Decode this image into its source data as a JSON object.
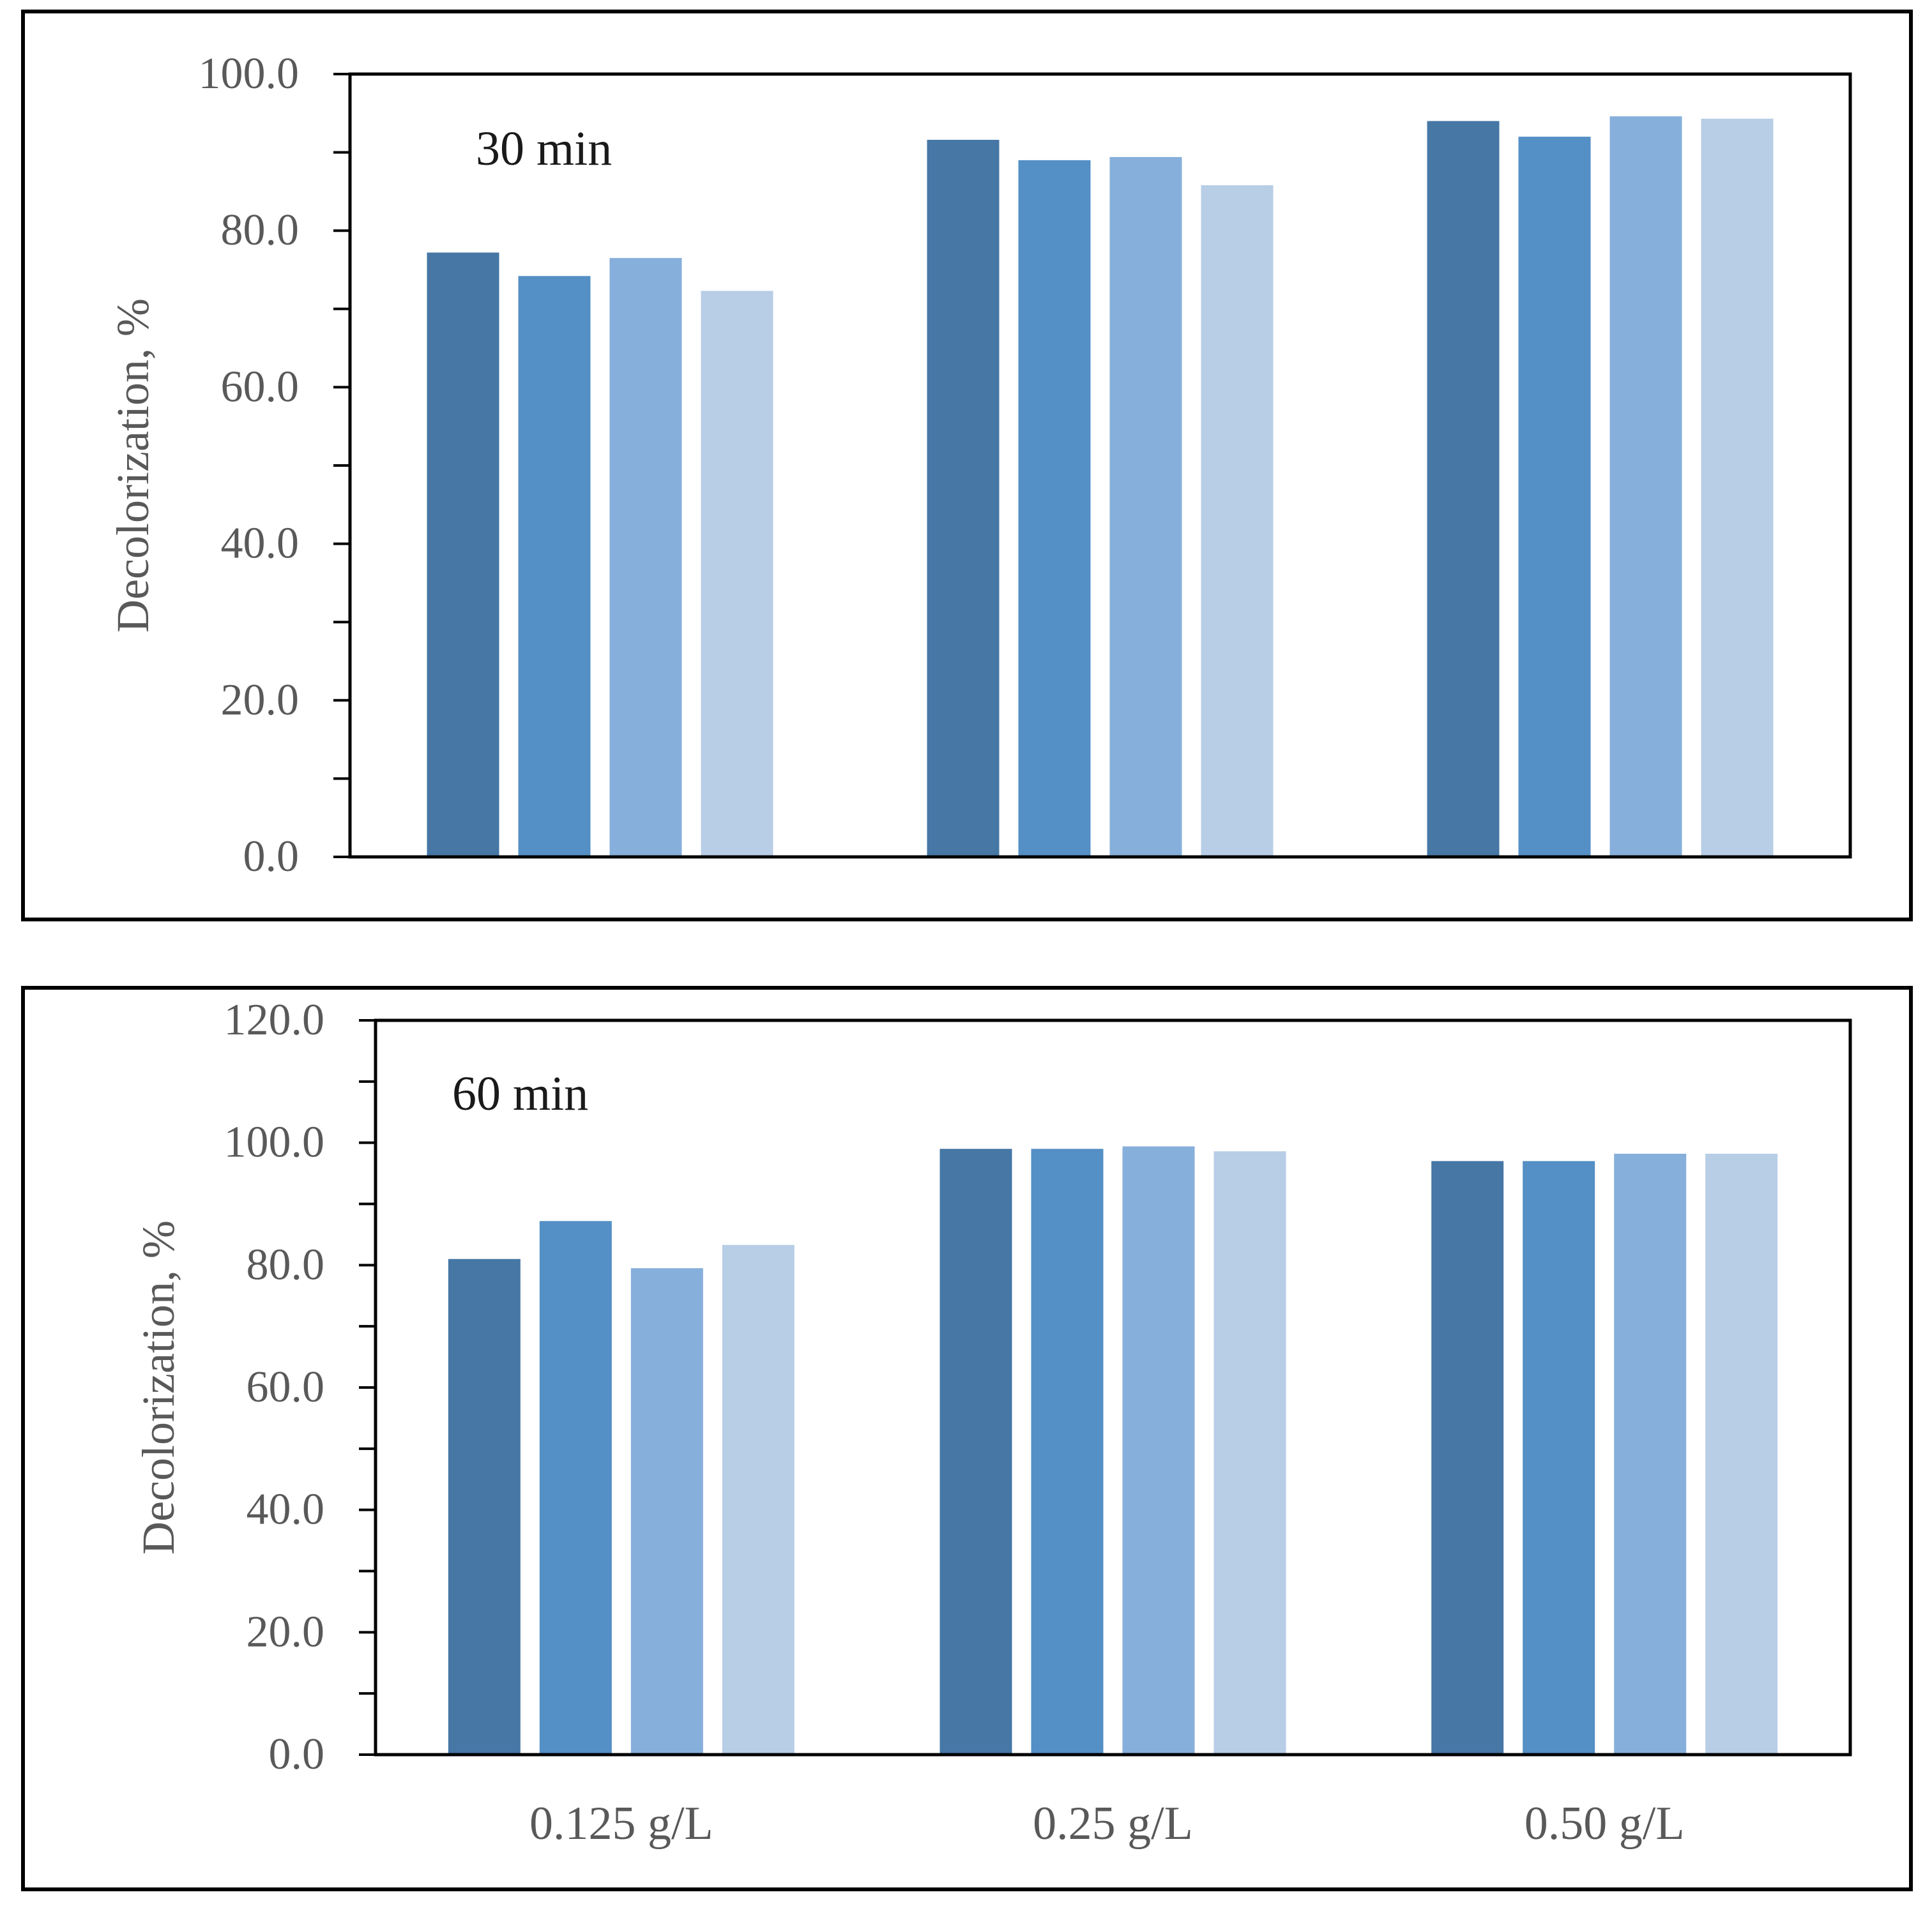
{
  "colors": {
    "series": [
      "#4677a5",
      "#548fc5",
      "#86afdb",
      "#b8cde6"
    ],
    "axis": "#000000",
    "tick_text": "#595959",
    "frame": "#000000"
  },
  "chart_data": [
    {
      "type": "bar",
      "annotation": "30 min",
      "ylabel": "Decolorization, %",
      "xlabel": "",
      "categories": [
        "0.125 g/L",
        "0.25 g/L",
        "0.50 g/L"
      ],
      "show_category_labels": false,
      "ylim": [
        0,
        100
      ],
      "yticks": [
        "0.0",
        "20.0",
        "40.0",
        "60.0",
        "80.0",
        "100.0"
      ],
      "ytick_values": [
        0,
        20,
        40,
        60,
        80,
        100
      ],
      "minor_tick_step": 10,
      "grid": false,
      "legend": "none",
      "series": [
        {
          "values": [
            77.2,
            91.6,
            94.0
          ]
        },
        {
          "values": [
            74.2,
            89.0,
            92.0
          ]
        },
        {
          "values": [
            76.5,
            89.4,
            94.6
          ]
        },
        {
          "values": [
            72.3,
            85.8,
            94.3
          ]
        }
      ]
    },
    {
      "type": "bar",
      "annotation": "60 min",
      "ylabel": "Decolorization, %",
      "xlabel": "",
      "categories": [
        "0.125 g/L",
        "0.25 g/L",
        "0.50 g/L"
      ],
      "show_category_labels": true,
      "ylim": [
        0,
        120
      ],
      "yticks": [
        "0.0",
        "20.0",
        "40.0",
        "60.0",
        "80.0",
        "100.0",
        "120.0"
      ],
      "ytick_values": [
        0,
        20,
        40,
        60,
        80,
        100,
        120
      ],
      "minor_tick_step": 10,
      "grid": false,
      "legend": "none",
      "series": [
        {
          "values": [
            81.0,
            99.0,
            97.0
          ]
        },
        {
          "values": [
            87.2,
            99.0,
            97.0
          ]
        },
        {
          "values": [
            79.5,
            99.4,
            98.2
          ]
        },
        {
          "values": [
            83.3,
            98.6,
            98.2
          ]
        }
      ]
    }
  ]
}
